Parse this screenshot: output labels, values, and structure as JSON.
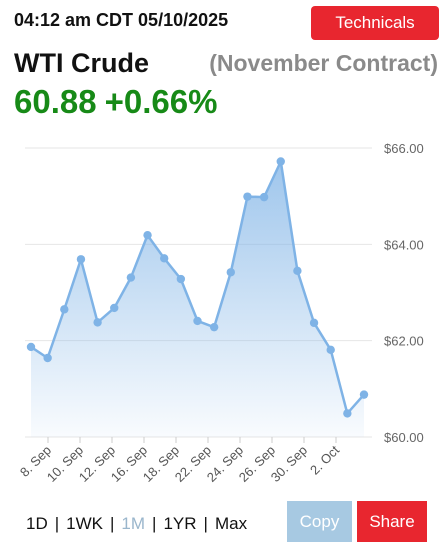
{
  "header": {
    "timestamp": "04:12 am CDT 05/10/2025",
    "technicals_label": "Technicals"
  },
  "instrument": {
    "name": "WTI Crude",
    "contract": "(November Contract)",
    "price": "60.88",
    "change": "+0.66%"
  },
  "ranges": [
    {
      "label": "1D",
      "active": false
    },
    {
      "label": "1WK",
      "active": false
    },
    {
      "label": "1M",
      "active": true
    },
    {
      "label": "1YR",
      "active": false
    },
    {
      "label": "Max",
      "active": false
    }
  ],
  "range_separator": "|",
  "actions": {
    "copy_label": "Copy",
    "share_label": "Share"
  },
  "colors": {
    "accent_red": "#e8262f",
    "price_green": "#178a17",
    "line": "#7fb3e6",
    "copy_button": "#a7c9e2"
  },
  "chart_data": {
    "type": "area",
    "title": "",
    "xlabel": "",
    "ylabel": "",
    "ylim": [
      60,
      66
    ],
    "y_ticks": [
      "$60.00",
      "$62.00",
      "$64.00",
      "$66.00"
    ],
    "x_ticks": [
      "8. Sep",
      "10. Sep",
      "12. Sep",
      "16. Sep",
      "18. Sep",
      "22. Sep",
      "24. Sep",
      "26. Sep",
      "30. Sep",
      "2. Oct"
    ],
    "values": [
      61.87,
      61.64,
      62.65,
      63.69,
      62.38,
      62.68,
      63.31,
      64.19,
      63.71,
      63.28,
      62.41,
      62.28,
      63.42,
      64.99,
      64.98,
      65.72,
      63.45,
      62.37,
      61.81,
      60.49,
      60.88
    ],
    "grid": true
  }
}
